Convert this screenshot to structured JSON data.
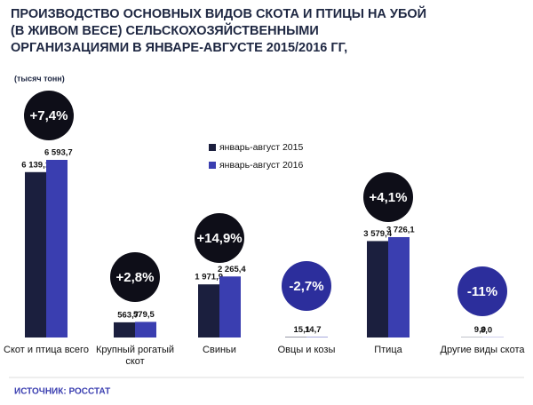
{
  "chart_data": {
    "type": "bar",
    "title": [
      "ПРОИЗВОДСТВО ОСНОВНЫХ ВИДОВ СКОТА И ПТИЦЫ НА УБОЙ",
      "(В ЖИВОМ ВЕСЕ)  СЕЛЬСКОХОЗЯЙСТВЕННЫМИ",
      "ОРГАНИЗАЦИЯМИ В ЯНВАРЕ-АВГУСТЕ 2015/2016 ГГ,"
    ],
    "unit": "(тысяч тонн)",
    "source": "ИСТОЧНИК: РОССТАТ",
    "categories": [
      "Скот и птица всего",
      "Крупный рогатый скот",
      "Свиньи",
      "Овцы и козы",
      "Птица",
      "Другие виды скота"
    ],
    "series": [
      {
        "name": "январь-август 2015",
        "color": "#1b1f3e",
        "values": [
          6139.1,
          563.7,
          1971.9,
          15.1,
          3579.4,
          9.0
        ],
        "value_labels": [
          "6 139,1",
          "563,7",
          "1 971,9",
          "15,1",
          "3 579,4",
          "9,0"
        ]
      },
      {
        "name": "январь-август 2016",
        "color": "#3a3eb0",
        "values": [
          6593.7,
          579.5,
          2265.4,
          14.7,
          3726.1,
          8.0
        ],
        "value_labels": [
          "6 593,7",
          "579,5",
          "2 265,4",
          "14,7",
          "3 726,1",
          "8,0"
        ]
      }
    ],
    "annotations": [
      {
        "text": "+7,4%",
        "color": "#0e0e18"
      },
      {
        "text": "+2,8%",
        "color": "#0e0e18"
      },
      {
        "text": "+14,9%",
        "color": "#0e0e18"
      },
      {
        "text": "-2,7%",
        "color": "#2c2e9c"
      },
      {
        "text": "+4,1%",
        "color": "#0e0e18"
      },
      {
        "text": "-11%",
        "color": "#2c2e9c"
      }
    ]
  }
}
